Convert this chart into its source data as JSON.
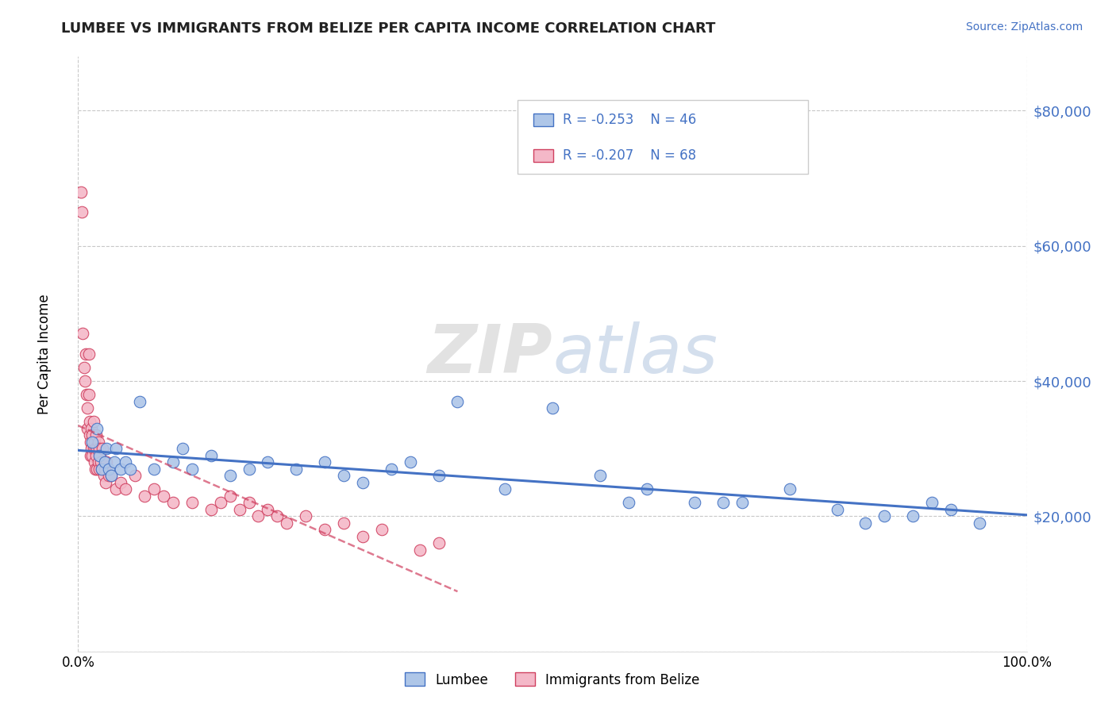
{
  "title": "LUMBEE VS IMMIGRANTS FROM BELIZE PER CAPITA INCOME CORRELATION CHART",
  "source": "Source: ZipAtlas.com",
  "ylabel": "Per Capita Income",
  "watermark": "ZIPatlas",
  "y_ticks": [
    0,
    20000,
    40000,
    60000,
    80000
  ],
  "y_tick_labels": [
    "",
    "$20,000",
    "$40,000",
    "$60,000",
    "$80,000"
  ],
  "x_min": 0.0,
  "x_max": 100.0,
  "y_min": 0,
  "y_max": 88000,
  "legend_r1": "R = -0.253",
  "legend_n1": "N = 46",
  "legend_r2": "R = -0.207",
  "legend_n2": "N = 68",
  "lumbee_color": "#aec6e8",
  "belize_color": "#f4b8c8",
  "trend_lumbee_color": "#4472c4",
  "trend_belize_color": "#d04060",
  "legend_text_color": "#4472c4",
  "lumbee_x": [
    1.5,
    2.0,
    2.2,
    2.5,
    2.8,
    3.0,
    3.2,
    3.5,
    3.8,
    4.0,
    4.5,
    5.0,
    5.5,
    6.5,
    8.0,
    10.0,
    11.0,
    12.0,
    14.0,
    16.0,
    18.0,
    20.0,
    23.0,
    26.0,
    28.0,
    30.0,
    33.0,
    35.0,
    38.0,
    40.0,
    45.0,
    50.0,
    55.0,
    58.0,
    60.0,
    65.0,
    68.0,
    70.0,
    75.0,
    80.0,
    83.0,
    85.0,
    88.0,
    90.0,
    92.0,
    95.0
  ],
  "lumbee_y": [
    31000,
    33000,
    29000,
    27000,
    28000,
    30000,
    27000,
    26000,
    28000,
    30000,
    27000,
    28000,
    27000,
    37000,
    27000,
    28000,
    30000,
    27000,
    29000,
    26000,
    27000,
    28000,
    27000,
    28000,
    26000,
    25000,
    27000,
    28000,
    26000,
    37000,
    24000,
    36000,
    26000,
    22000,
    24000,
    22000,
    22000,
    22000,
    24000,
    21000,
    19000,
    20000,
    20000,
    22000,
    21000,
    19000
  ],
  "belize_x": [
    0.3,
    0.4,
    0.5,
    0.6,
    0.7,
    0.8,
    0.9,
    1.0,
    1.0,
    1.1,
    1.1,
    1.2,
    1.2,
    1.3,
    1.3,
    1.4,
    1.4,
    1.5,
    1.5,
    1.6,
    1.6,
    1.7,
    1.7,
    1.8,
    1.8,
    1.9,
    1.9,
    2.0,
    2.0,
    2.1,
    2.1,
    2.2,
    2.2,
    2.3,
    2.4,
    2.5,
    2.6,
    2.7,
    2.8,
    2.9,
    3.0,
    3.2,
    3.5,
    4.0,
    4.5,
    5.0,
    6.0,
    7.0,
    8.0,
    9.0,
    10.0,
    12.0,
    14.0,
    15.0,
    16.0,
    17.0,
    18.0,
    19.0,
    20.0,
    21.0,
    22.0,
    24.0,
    26.0,
    28.0,
    30.0,
    32.0,
    36.0,
    38.0
  ],
  "belize_y": [
    68000,
    65000,
    47000,
    42000,
    40000,
    44000,
    38000,
    36000,
    33000,
    44000,
    38000,
    34000,
    32000,
    31000,
    29000,
    33000,
    30000,
    32000,
    29000,
    34000,
    30000,
    31000,
    28000,
    30000,
    27000,
    32000,
    29000,
    30000,
    27000,
    31000,
    28000,
    30000,
    27000,
    29000,
    28000,
    27000,
    30000,
    26000,
    27000,
    25000,
    28000,
    26000,
    26000,
    24000,
    25000,
    24000,
    26000,
    23000,
    24000,
    23000,
    22000,
    22000,
    21000,
    22000,
    23000,
    21000,
    22000,
    20000,
    21000,
    20000,
    19000,
    20000,
    18000,
    19000,
    17000,
    18000,
    15000,
    16000
  ],
  "tick_color": "#4472c4",
  "grid_color": "#c8c8c8",
  "spine_color": "#dddddd"
}
